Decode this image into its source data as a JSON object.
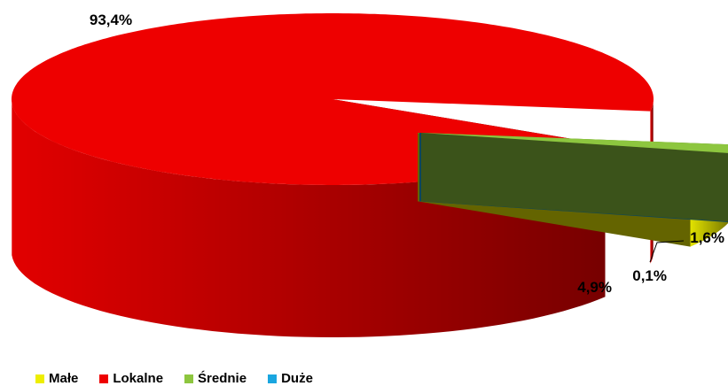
{
  "chart_data": {
    "type": "pie",
    "style": "3d-exploded",
    "categories": [
      "Małe",
      "Lokalne",
      "Średnie",
      "Duże"
    ],
    "values": [
      4.9,
      93.4,
      1.6,
      0.1
    ],
    "data_labels": [
      "4,9%",
      "93,4%",
      "1,6%",
      "0,1%"
    ],
    "colors": [
      "#eeee00",
      "#ee0000",
      "#8dc63f",
      "#1aa6e0"
    ],
    "legend_position": "bottom-left",
    "title": ""
  }
}
